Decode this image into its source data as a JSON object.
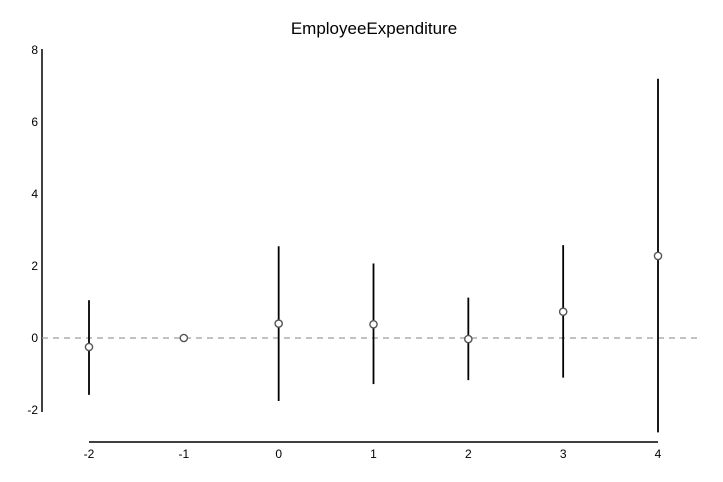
{
  "chart_data": {
    "type": "scatter",
    "title": "EmployeeExpenditure",
    "xlabel": "",
    "ylabel": "",
    "x": [
      -2,
      -1,
      0,
      1,
      2,
      3,
      4
    ],
    "y": [
      -0.25,
      0.0,
      0.4,
      0.38,
      -0.03,
      0.73,
      2.28
    ],
    "ci_low": [
      -1.58,
      0.0,
      -1.75,
      -1.28,
      -1.17,
      -1.1,
      -2.62
    ],
    "ci_high": [
      1.05,
      0.0,
      2.55,
      2.07,
      1.12,
      2.58,
      7.2
    ],
    "xlim": [
      -2,
      4
    ],
    "ylim": [
      -2,
      8
    ],
    "x_ticks": [
      -2,
      -1,
      0,
      1,
      2,
      3,
      4
    ],
    "y_ticks": [
      -2,
      0,
      2,
      4,
      6,
      8
    ],
    "reference_line": {
      "y": 0,
      "style": "dashed",
      "color": "#9e9e9e"
    },
    "marker": "open-circle",
    "colors": {
      "errorbar": "#000000",
      "marker": "#555555",
      "axis": "#000000"
    },
    "grid": false,
    "legend": "none"
  }
}
